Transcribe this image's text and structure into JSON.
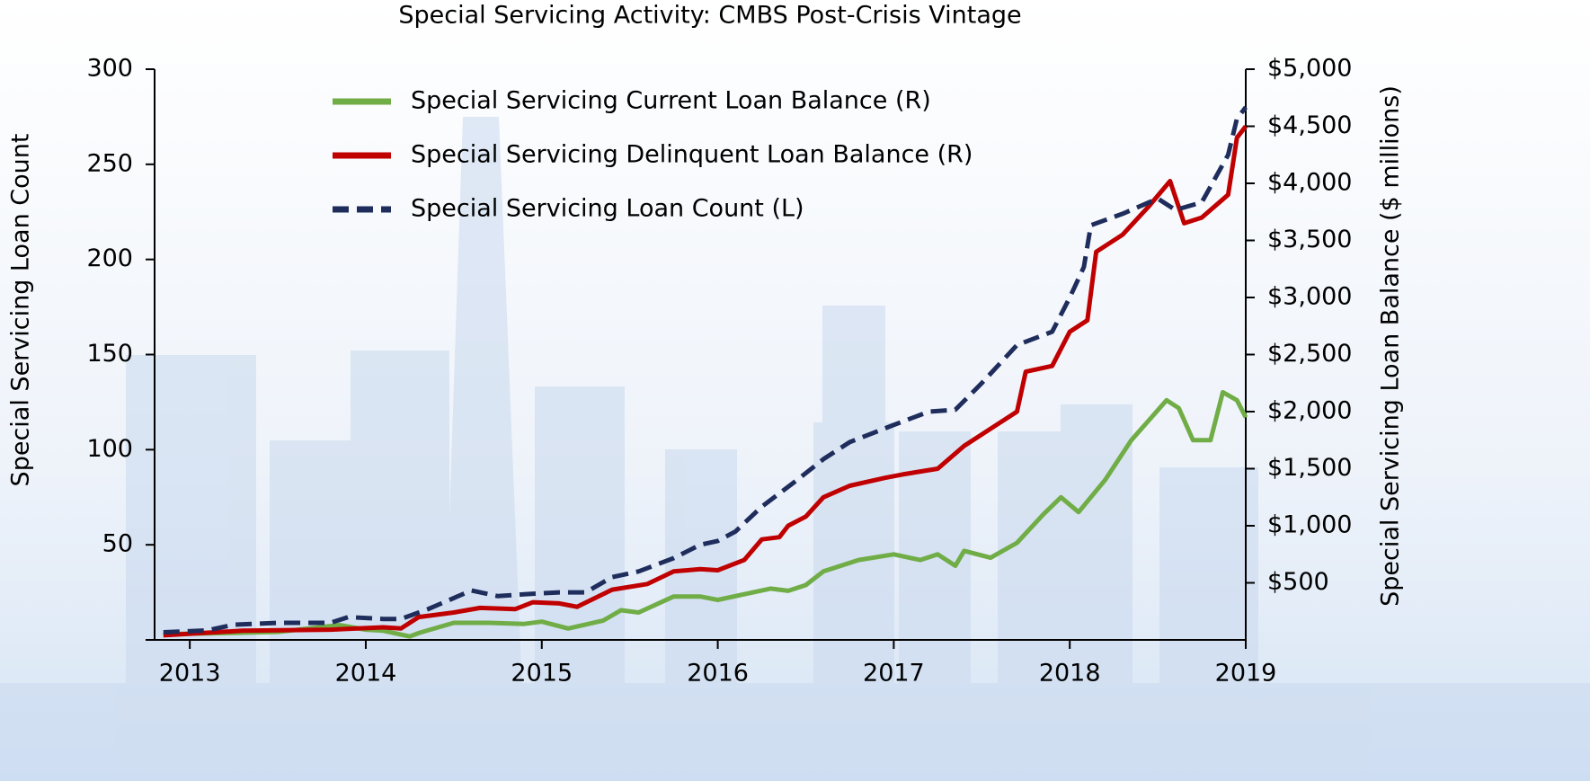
{
  "chart_data": {
    "type": "line",
    "title": "Special Servicing Activity: CMBS Post-Crisis Vintage",
    "y_label": "Special Servicing Loan Count",
    "y2_label": "Special Servicing Loan Balance ($ millions)",
    "xlim": [
      2012.8,
      2019.0
    ],
    "xticks": [
      2013,
      2014,
      2015,
      2016,
      2017,
      2018,
      2019
    ],
    "ylim": [
      0,
      300
    ],
    "yticks": [
      50,
      100,
      150,
      200,
      250,
      300
    ],
    "y2lim": [
      0,
      5000
    ],
    "y2ticks": [
      {
        "value": 500,
        "label": "$500"
      },
      {
        "value": 1000,
        "label": "$1,000"
      },
      {
        "value": 1500,
        "label": "$1,500"
      },
      {
        "value": 2000,
        "label": "$2,000"
      },
      {
        "value": 2500,
        "label": "$2,500"
      },
      {
        "value": 3000,
        "label": "$3,000"
      },
      {
        "value": 3500,
        "label": "$3,500"
      },
      {
        "value": 4000,
        "label": "$4,000"
      },
      {
        "value": 4500,
        "label": "$4,500"
      },
      {
        "value": 5000,
        "label": "$5,000"
      }
    ],
    "legend": "upper left",
    "series": [
      {
        "name": "Special Servicing Current Loan Balance (R)",
        "color": "#70ad47",
        "axis": "y2",
        "style": "solid",
        "x": [
          2012.85,
          2013.2,
          2013.5,
          2013.85,
          2014.0,
          2014.1,
          2014.25,
          2014.3,
          2014.5,
          2014.7,
          2014.9,
          2015.0,
          2015.15,
          2015.35,
          2015.45,
          2015.55,
          2015.75,
          2015.9,
          2016.0,
          2016.15,
          2016.3,
          2016.4,
          2016.5,
          2016.6,
          2016.8,
          2017.0,
          2017.15,
          2017.25,
          2017.35,
          2017.4,
          2017.55,
          2017.7,
          2017.85,
          2017.95,
          2018.05,
          2018.2,
          2018.35,
          2018.55,
          2018.62,
          2018.7,
          2018.8,
          2018.87,
          2018.95,
          2019.0
        ],
        "values": [
          50,
          60,
          70,
          130,
          90,
          80,
          30,
          60,
          150,
          150,
          140,
          160,
          100,
          170,
          260,
          240,
          380,
          380,
          350,
          400,
          450,
          430,
          480,
          600,
          700,
          750,
          700,
          750,
          650,
          780,
          720,
          850,
          1100,
          1250,
          1120,
          1400,
          1750,
          2100,
          2030,
          1750,
          1750,
          2170,
          2100,
          1950
        ]
      },
      {
        "name": "Special Servicing Delinquent Loan Balance (R)",
        "color": "#c00000",
        "axis": "y2",
        "style": "solid",
        "x": [
          2012.85,
          2013.3,
          2013.8,
          2014.1,
          2014.2,
          2014.3,
          2014.5,
          2014.65,
          2014.85,
          2014.95,
          2015.1,
          2015.2,
          2015.4,
          2015.6,
          2015.75,
          2015.9,
          2016.0,
          2016.15,
          2016.25,
          2016.35,
          2016.4,
          2016.5,
          2016.6,
          2016.75,
          2016.95,
          2017.05,
          2017.25,
          2017.4,
          2017.6,
          2017.7,
          2017.75,
          2017.9,
          2018.0,
          2018.1,
          2018.15,
          2018.3,
          2018.45,
          2018.57,
          2018.65,
          2018.75,
          2018.9,
          2018.95,
          2019.0
        ],
        "values": [
          40,
          80,
          90,
          110,
          100,
          200,
          240,
          280,
          270,
          330,
          320,
          290,
          440,
          490,
          600,
          620,
          610,
          700,
          880,
          900,
          1000,
          1080,
          1250,
          1350,
          1420,
          1450,
          1500,
          1700,
          1900,
          2000,
          2350,
          2400,
          2700,
          2800,
          3400,
          3550,
          3800,
          4020,
          3650,
          3700,
          3900,
          4400,
          4500
        ]
      },
      {
        "name": "Special Servicing Loan Count (L)",
        "color": "#1f2d5c",
        "axis": "y",
        "style": "dashed",
        "x": [
          2012.85,
          2013.1,
          2013.25,
          2013.5,
          2013.8,
          2013.9,
          2014.1,
          2014.2,
          2014.35,
          2014.5,
          2014.6,
          2014.75,
          2014.9,
          2015.1,
          2015.25,
          2015.4,
          2015.55,
          2015.75,
          2015.9,
          2016.0,
          2016.1,
          2016.25,
          2016.45,
          2016.6,
          2016.75,
          2017.0,
          2017.2,
          2017.35,
          2017.5,
          2017.7,
          2017.9,
          2018.0,
          2018.08,
          2018.12,
          2018.3,
          2018.5,
          2018.6,
          2018.75,
          2018.9,
          2018.95,
          2019.0
        ],
        "values": [
          4,
          5,
          8,
          9,
          9,
          12,
          11,
          11,
          16,
          22,
          26,
          23,
          24,
          25,
          25,
          33,
          36,
          43,
          50,
          52,
          57,
          70,
          84,
          95,
          104,
          113,
          120,
          121,
          135,
          155,
          162,
          180,
          196,
          218,
          224,
          232,
          226,
          230,
          255,
          274,
          280
        ]
      }
    ]
  }
}
